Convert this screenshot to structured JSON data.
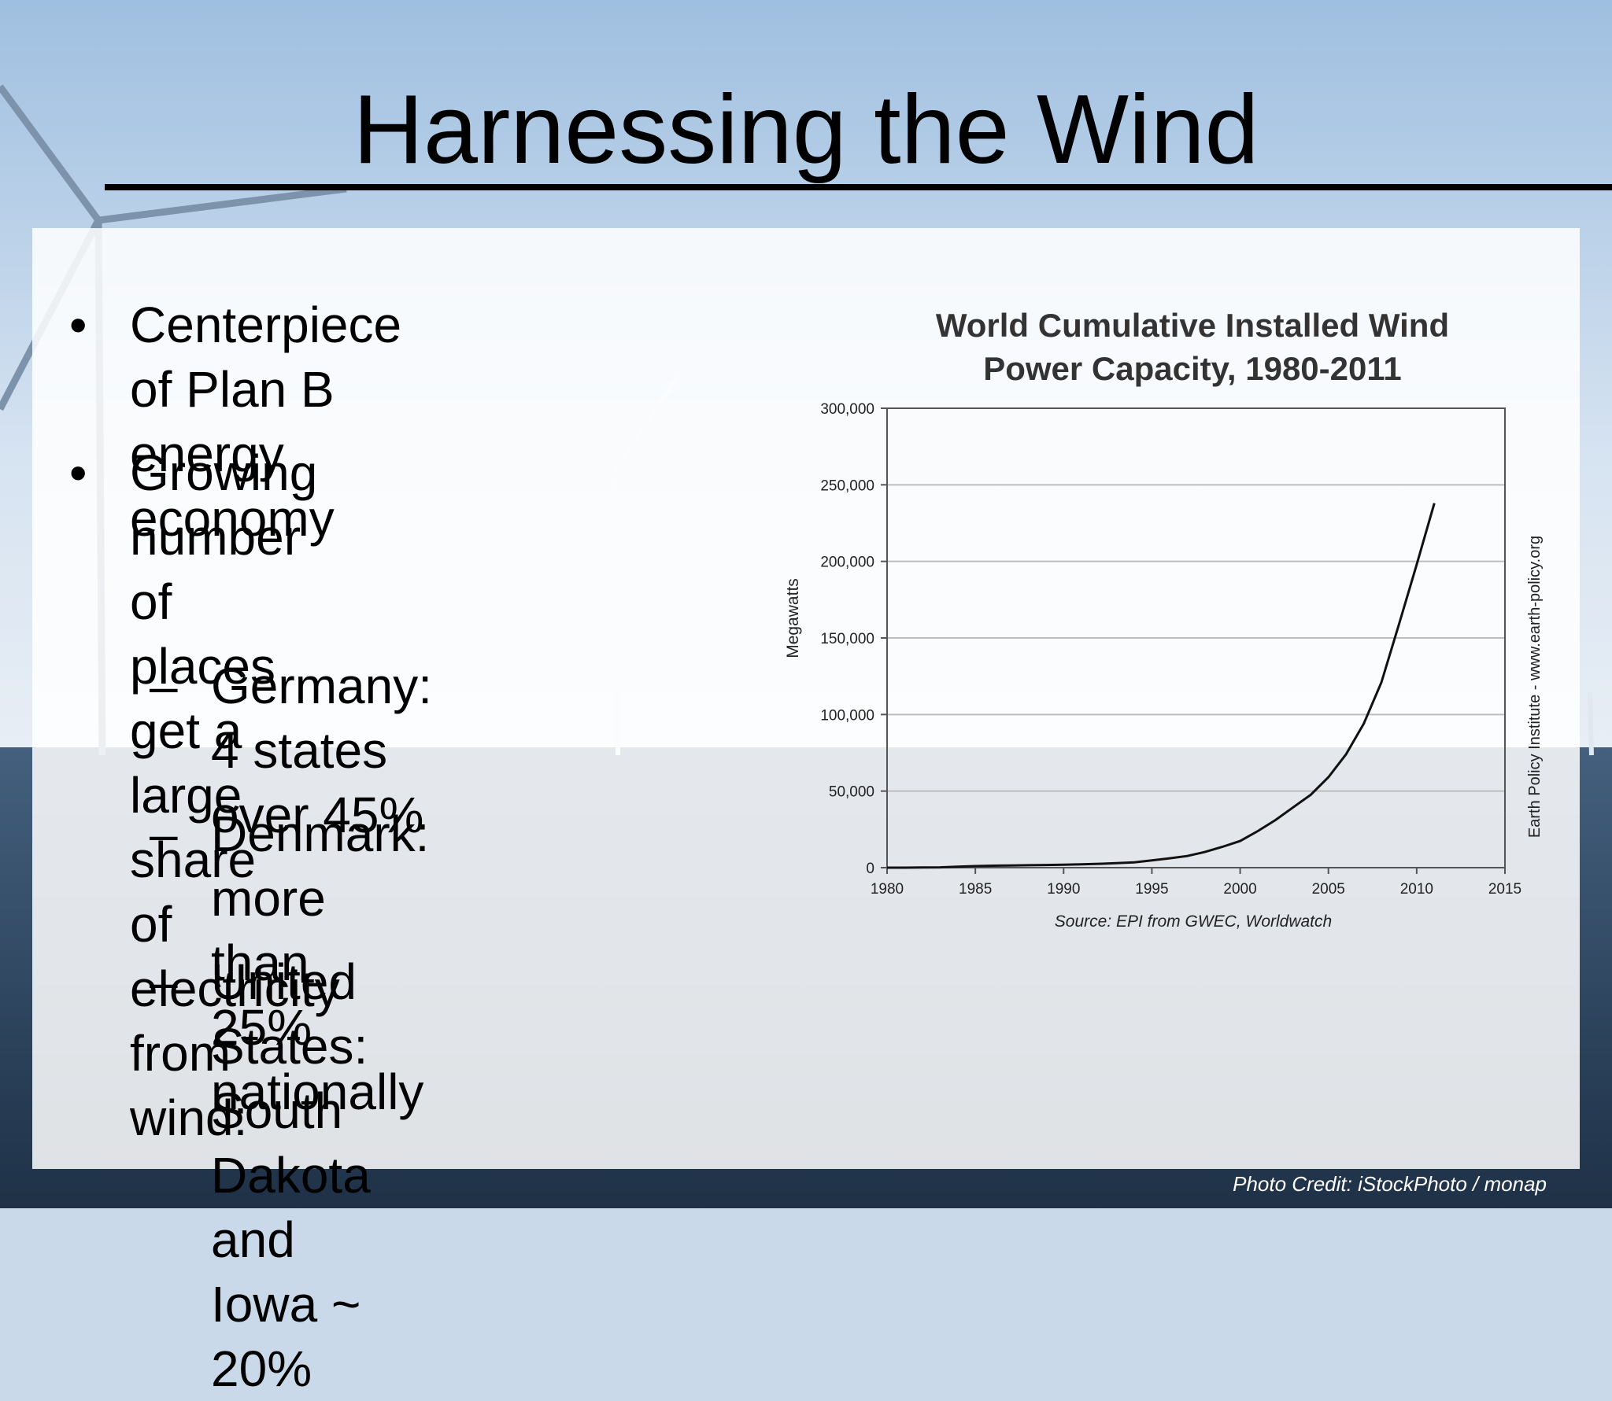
{
  "slide": {
    "title": "Harnessing the Wind",
    "photo_credit": "Photo Credit: iStockPhoto / monap"
  },
  "bullets": [
    {
      "mark": "•",
      "text": "Centerpiece of Plan B\nenergy economy"
    },
    {
      "mark": "•",
      "text": "Growing number of\nplaces get a large share\nof electricity from wind:"
    }
  ],
  "subbullets": [
    {
      "mark": "–",
      "text": "Germany: 4 states\nover 45%"
    },
    {
      "mark": "–",
      "text": "Denmark: more than\n25% nationally"
    },
    {
      "mark": "–",
      "text": "United States:\nSouth Dakota and\nIowa ~ 20%"
    }
  ],
  "colors": {
    "panel": "#ffffff",
    "line": "#111111",
    "grid": "#bdbdbd"
  },
  "chart_data": {
    "type": "line",
    "title": "World Cumulative Installed Wind\nPower Capacity, 1980-2011",
    "xlabel": "",
    "ylabel": "Megawatts",
    "source": "Source: EPI from GWEC, Worldwatch",
    "side_note": "Earth Policy Institute - www.earth-policy.org",
    "xlim": [
      1980,
      2015
    ],
    "ylim": [
      0,
      300000
    ],
    "x_ticks": [
      "1980",
      "1985",
      "1990",
      "1995",
      "2000",
      "2005",
      "2010",
      "2015"
    ],
    "y_ticks": [
      "0",
      "50,000",
      "100,000",
      "150,000",
      "200,000",
      "250,000",
      "300,000"
    ],
    "grid": true,
    "series": [
      {
        "x": [
          1980,
          1981,
          1982,
          1983,
          1984,
          1985,
          1986,
          1987,
          1988,
          1989,
          1990,
          1991,
          1992,
          1993,
          1994,
          1995,
          1996,
          1997,
          1998,
          1999,
          2000,
          2001,
          2002,
          2003,
          2004,
          2005,
          2006,
          2007,
          2008,
          2009,
          2010,
          2011
        ],
        "values": [
          10,
          25,
          90,
          210,
          600,
          1020,
          1270,
          1450,
          1580,
          1730,
          1930,
          2170,
          2510,
          2990,
          3490,
          4800,
          6100,
          7600,
          10200,
          13600,
          17400,
          23900,
          31100,
          39400,
          47600,
          59100,
          74000,
          94000,
          121000,
          159000,
          198000,
          238000
        ]
      }
    ]
  }
}
